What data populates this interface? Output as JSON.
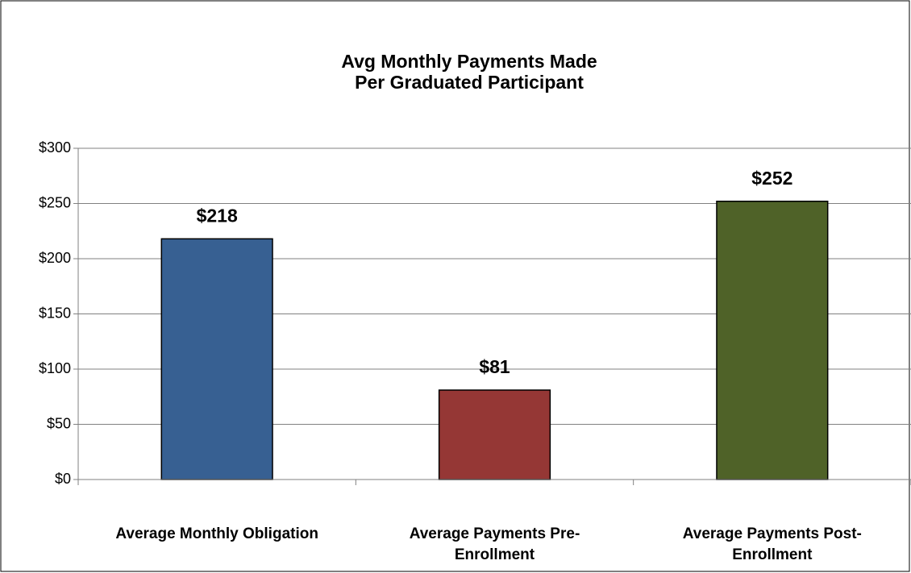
{
  "chart_data": {
    "type": "bar",
    "title": [
      "Avg Monthly Payments Made",
      "Per Graduated Participant"
    ],
    "categories": [
      "Average Monthly Obligation",
      "Average Payments Pre-Enrollment",
      "Average Payments Post-Enrollment"
    ],
    "values": [
      218,
      81,
      252
    ],
    "value_labels": [
      "$218",
      "$81",
      "$252"
    ],
    "colors": [
      "#376092",
      "#953735",
      "#4f6228"
    ],
    "ylim": [
      0,
      300
    ],
    "yticks": [
      {
        "value": 0,
        "label": "$0"
      },
      {
        "value": 50,
        "label": "$50"
      },
      {
        "value": 100,
        "label": "$100"
      },
      {
        "value": 150,
        "label": "$150"
      },
      {
        "value": 200,
        "label": "$200"
      },
      {
        "value": 250,
        "label": "$250"
      },
      {
        "value": 300,
        "label": "$300"
      }
    ],
    "grid": true
  }
}
